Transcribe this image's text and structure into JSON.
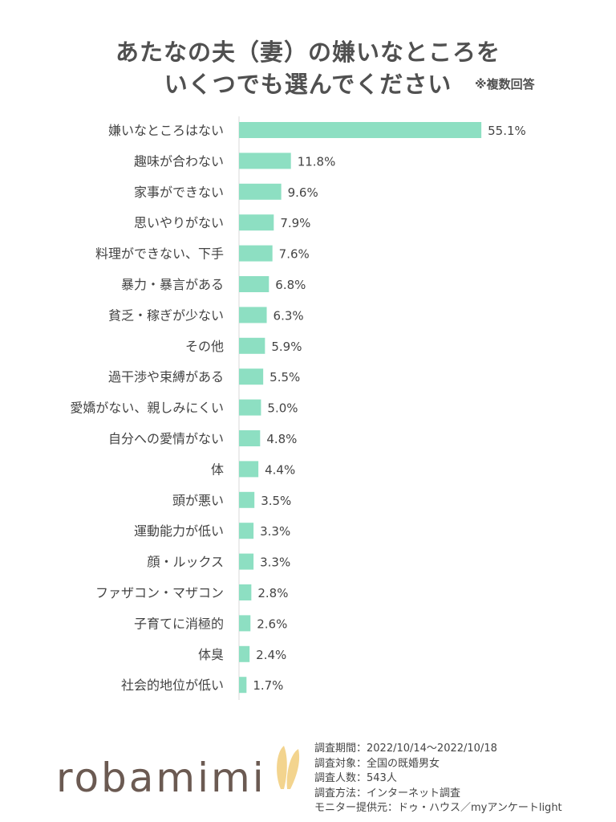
{
  "title_line1": "あたなの夫（妻）の嫌いなところを",
  "title_line2": "いくつでも選んでください",
  "note": "※複数回答",
  "chart_data": {
    "type": "bar",
    "orientation": "horizontal",
    "bar_color": "#8ddfc2",
    "categories": [
      "嫌いなところはない",
      "趣味が合わない",
      "家事ができない",
      "思いやりがない",
      "料理ができない、下手",
      "暴力・暴言がある",
      "貧乏・稼ぎが少ない",
      "その他",
      "過干渉や束縛がある",
      "愛嬌がない、親しみにくい",
      "自分への愛情がない",
      "体",
      "頭が悪い",
      "運動能力が低い",
      "顔・ルックス",
      "ファザコン・マザコン",
      "子育てに消極的",
      "体臭",
      "社会的地位が低い"
    ],
    "values": [
      55.1,
      11.8,
      9.6,
      7.9,
      7.6,
      6.8,
      6.3,
      5.9,
      5.5,
      5.0,
      4.8,
      4.4,
      3.5,
      3.3,
      3.3,
      2.8,
      2.6,
      2.4,
      1.7
    ],
    "value_labels": [
      "55.1%",
      "11.8%",
      "9.6%",
      "7.9%",
      "7.6%",
      "6.8%",
      "6.3%",
      "5.9%",
      "5.5%",
      "5.0%",
      "4.8%",
      "4.4%",
      "3.5%",
      "3.3%",
      "3.3%",
      "2.8%",
      "2.6%",
      "2.4%",
      "1.7%"
    ],
    "xlim": [
      0,
      60
    ]
  },
  "logo": "robamimi",
  "logo_colors": {
    "text": "#6b5a52",
    "ears": "#f3d48e"
  },
  "survey_info": [
    "調査期間：2022/10/14～2022/10/18",
    "調査対象：全国の既婚男女",
    "調査人数：543人",
    "調査方法：インターネット調査",
    "モニター提供元：ドゥ・ハウス／myアンケートlight"
  ]
}
